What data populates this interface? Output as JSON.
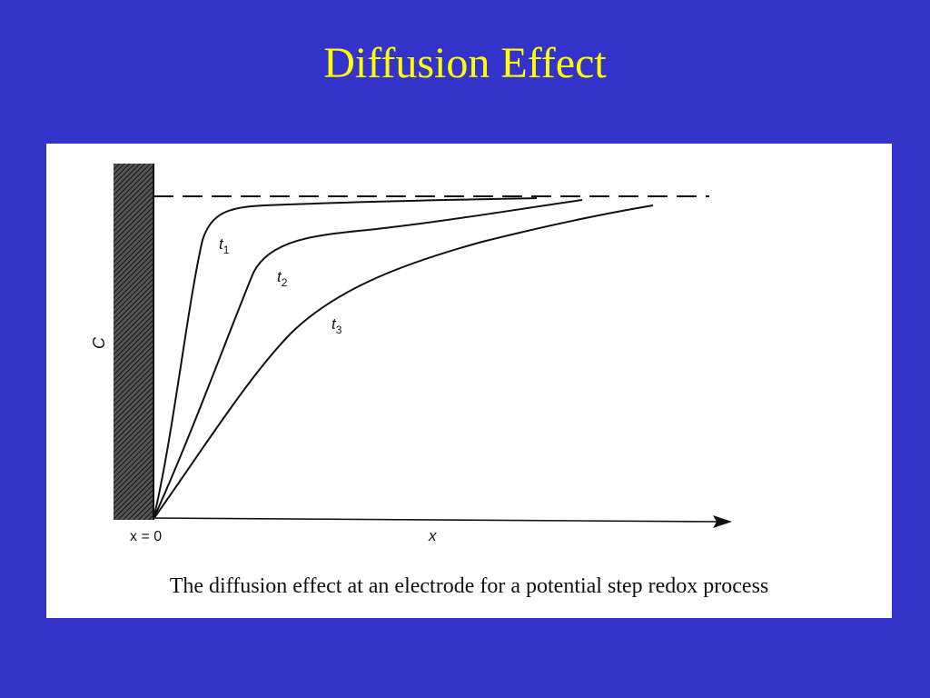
{
  "slide": {
    "title": "Diffusion Effect"
  },
  "figure": {
    "caption": "The diffusion effect at an electrode for a potential step redox process",
    "y_axis_label": "C",
    "x_axis_label": "x",
    "origin_label": "x = 0",
    "curves": [
      {
        "id": "t1",
        "label_base": "t",
        "label_sub": "1"
      },
      {
        "id": "t2",
        "label_base": "t",
        "label_sub": "2"
      },
      {
        "id": "t3",
        "label_base": "t",
        "label_sub": "3"
      }
    ],
    "colors": {
      "background": "#3333cc",
      "title": "#ffff00",
      "panel": "#ffffff",
      "ink": "#111111"
    }
  }
}
